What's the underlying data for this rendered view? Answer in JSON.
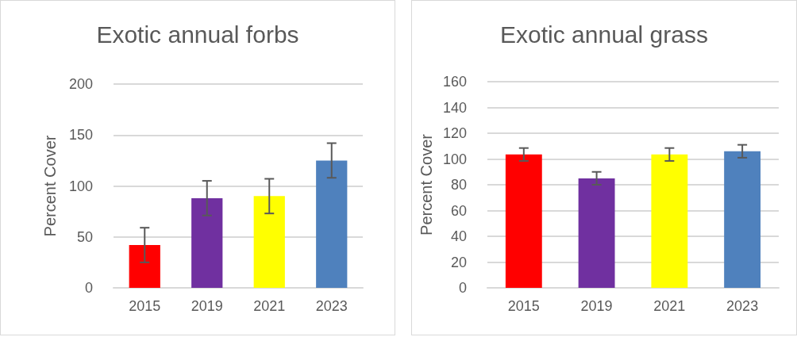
{
  "chart_data": [
    {
      "type": "bar",
      "title": "Exotic annual forbs",
      "ylabel": "Percent Cover",
      "categories": [
        "2015",
        "2019",
        "2021",
        "2023"
      ],
      "values": [
        42,
        88,
        90,
        125
      ],
      "colors": [
        "#ff0000",
        "#7030a0",
        "#ffff00",
        "#4f81bd"
      ],
      "errors": [
        17,
        17,
        17,
        17
      ],
      "ylim": [
        0,
        200
      ],
      "yticks": [
        0,
        50,
        100,
        150,
        200
      ],
      "grid": "y"
    },
    {
      "type": "bar",
      "title": "Exotic annual grass",
      "ylabel": "Percent Cover",
      "categories": [
        "2015",
        "2019",
        "2021",
        "2023"
      ],
      "values": [
        103.5,
        85,
        103.5,
        106
      ],
      "colors": [
        "#ff0000",
        "#7030a0",
        "#ffff00",
        "#4f81bd"
      ],
      "errors": [
        5,
        5,
        5,
        5
      ],
      "ylim": [
        0,
        160
      ],
      "yticks": [
        0,
        20,
        40,
        60,
        80,
        100,
        120,
        140,
        160
      ],
      "grid": "y"
    }
  ]
}
